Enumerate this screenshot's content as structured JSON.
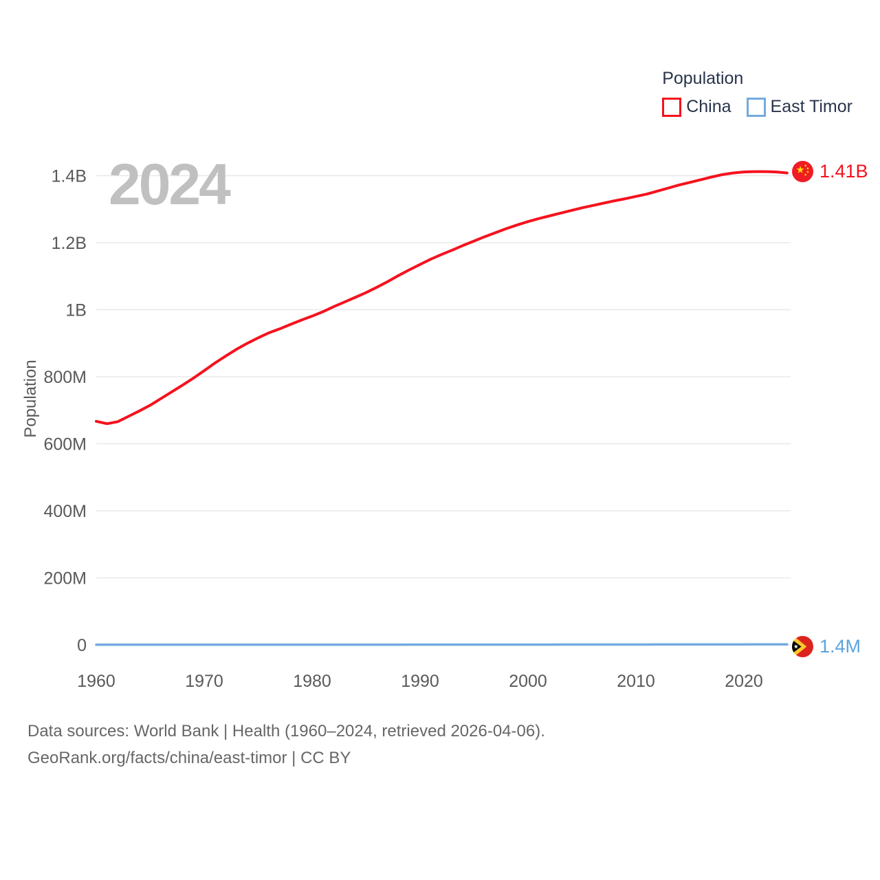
{
  "legend": {
    "title": "Population",
    "items": [
      {
        "label": "China",
        "color": "#f5121d"
      },
      {
        "label": "East Timor",
        "color": "#74aae0"
      }
    ]
  },
  "watermark": "2024",
  "y_axis_title": "Population",
  "end_markers": {
    "china": {
      "label": "1.41B",
      "flag": "china-flag"
    },
    "east_timor": {
      "label": "1.4M",
      "flag": "east-timor-flag"
    }
  },
  "footer": {
    "line1": "Data sources: World Bank | Health (1960–2024, retrieved 2026-04-06).",
    "line2": "GeoRank.org/facts/china/east-timor | CC BY"
  },
  "colors": {
    "china_line": "#f5121d",
    "east_timor_line": "#74aae0",
    "china_label": "#f5121d",
    "east_timor_label": "#5ba4e0",
    "grid": "#e8e8e8",
    "axis_text": "#595959",
    "legend_text": "#29344a",
    "watermark": "#c0c0c0",
    "footer_text": "#666666",
    "china_flag_red": "#ee1c25",
    "china_flag_yellow": "#ffde00",
    "east_timor_flag_red": "#dc241f",
    "east_timor_flag_yellow": "#ffc72c",
    "east_timor_flag_black": "#000000",
    "east_timor_flag_white": "#ffffff"
  },
  "chart_data": {
    "type": "line",
    "title": "Population",
    "ylabel": "Population",
    "xlabel": "",
    "grid": "horizontal",
    "legend_position": "top-right",
    "current_year_indicator": "2024",
    "x_range": [
      1960,
      2024
    ],
    "ylim_millions": [
      0,
      1450
    ],
    "y_ticks": [
      {
        "value_millions": 0,
        "label": "0"
      },
      {
        "value_millions": 200,
        "label": "200M"
      },
      {
        "value_millions": 400,
        "label": "400M"
      },
      {
        "value_millions": 600,
        "label": "600M"
      },
      {
        "value_millions": 800,
        "label": "800M"
      },
      {
        "value_millions": 1000,
        "label": "1B"
      },
      {
        "value_millions": 1200,
        "label": "1.2B"
      },
      {
        "value_millions": 1400,
        "label": "1.4B"
      }
    ],
    "x_ticks": [
      {
        "value": 1960,
        "label": "1960"
      },
      {
        "value": 1970,
        "label": "1970"
      },
      {
        "value": 1980,
        "label": "1980"
      },
      {
        "value": 1990,
        "label": "1990"
      },
      {
        "value": 2000,
        "label": "2000"
      },
      {
        "value": 2010,
        "label": "2010"
      },
      {
        "value": 2020,
        "label": "2020"
      }
    ],
    "x": [
      1960,
      1961,
      1962,
      1963,
      1964,
      1965,
      1966,
      1967,
      1968,
      1969,
      1970,
      1971,
      1972,
      1973,
      1974,
      1975,
      1976,
      1977,
      1978,
      1979,
      1980,
      1981,
      1982,
      1983,
      1984,
      1985,
      1986,
      1987,
      1988,
      1989,
      1990,
      1991,
      1992,
      1993,
      1994,
      1995,
      1996,
      1997,
      1998,
      1999,
      2000,
      2001,
      2002,
      2003,
      2004,
      2005,
      2006,
      2007,
      2008,
      2009,
      2010,
      2011,
      2012,
      2013,
      2014,
      2015,
      2016,
      2017,
      2018,
      2019,
      2020,
      2021,
      2022,
      2023,
      2024
    ],
    "series": [
      {
        "name": "China",
        "color": "#f5121d",
        "end_label": "1.41B",
        "values_millions": [
          667,
          660,
          666,
          682,
          698,
          715,
          735,
          755,
          775,
          796,
          818,
          841,
          862,
          882,
          900,
          916,
          931,
          943,
          956,
          969,
          981,
          994,
          1009,
          1023,
          1037,
          1051,
          1067,
          1084,
          1102,
          1119,
          1135,
          1151,
          1165,
          1178,
          1192,
          1205,
          1218,
          1230,
          1242,
          1253,
          1263,
          1272,
          1280,
          1288,
          1296,
          1304,
          1311,
          1318,
          1325,
          1331,
          1338,
          1345,
          1354,
          1363,
          1372,
          1380,
          1388,
          1396,
          1403,
          1408,
          1411,
          1412,
          1412,
          1411,
          1408
        ]
      },
      {
        "name": "East Timor",
        "color": "#74aae0",
        "end_label": "1.4M",
        "values_millions": [
          0.5,
          0.51,
          0.52,
          0.52,
          0.53,
          0.54,
          0.55,
          0.56,
          0.57,
          0.58,
          0.6,
          0.61,
          0.62,
          0.63,
          0.64,
          0.66,
          0.64,
          0.61,
          0.59,
          0.58,
          0.58,
          0.59,
          0.6,
          0.62,
          0.63,
          0.65,
          0.67,
          0.69,
          0.71,
          0.73,
          0.75,
          0.77,
          0.79,
          0.81,
          0.83,
          0.85,
          0.87,
          0.88,
          0.88,
          0.88,
          0.88,
          0.9,
          0.92,
          0.95,
          0.97,
          1.0,
          1.02,
          1.04,
          1.06,
          1.08,
          1.09,
          1.11,
          1.13,
          1.15,
          1.18,
          1.2,
          1.22,
          1.24,
          1.27,
          1.29,
          1.32,
          1.34,
          1.36,
          1.38,
          1.4
        ]
      }
    ]
  }
}
